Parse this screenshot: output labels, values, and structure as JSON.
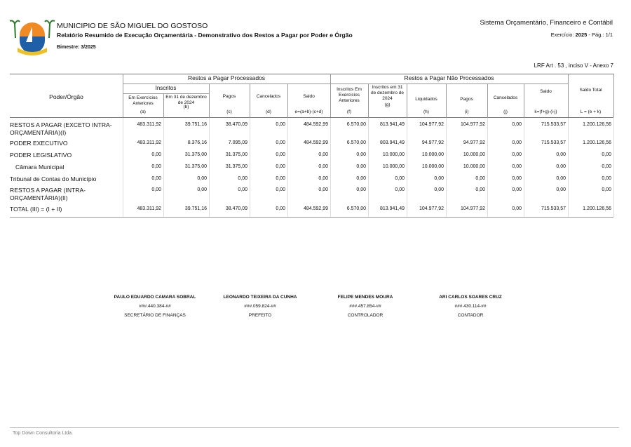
{
  "header": {
    "municipality": "MUNICIPIO DE SÃO MIGUEL DO GOSTOSO",
    "report_title": "Relatório Resumido de Execução Orçamentária - Demonstrativo dos Restos a Pagar por Poder e Órgão",
    "period": "Bimestre: 3/2025",
    "system": "Sistema Orçamentário, Financeiro e Contábil",
    "exercise_label": "Exercício:",
    "exercise_year": "2025",
    "page": "-  Pág.: 1/1",
    "legal": "LRF Art . 53 , inciso V - Anexo 7"
  },
  "table": {
    "groups": [
      "Restos a Pagar Processados",
      "Restos a Pagar Não Processados"
    ],
    "first_column": "Poder/Órgão",
    "inscritos": "Inscritos",
    "columns": [
      {
        "label": "Em Exercícios Anteriores",
        "code": "(a)"
      },
      {
        "label": "Em 31 de dezembro de 2024",
        "code": "(b)"
      },
      {
        "label": "Pagos",
        "code": "(c)"
      },
      {
        "label": "Cancelados",
        "code": "(d)"
      },
      {
        "label": "Saldo",
        "code": "e=(a+b)-(c+d)"
      },
      {
        "label": "Inscritos Em Exercícios Anteriores",
        "code": "(f)"
      },
      {
        "label": "Inscritos em 31 de dezembro de 2024",
        "code": "(g)"
      },
      {
        "label": "Liquidados",
        "code": "(h)"
      },
      {
        "label": "Pagos",
        "code": "(i)"
      },
      {
        "label": "Cancelados",
        "code": "(j)"
      },
      {
        "label": "Saldo",
        "code": "k=(f+g)-(i-j)"
      },
      {
        "label": "Saldo Total",
        "code": "L = (e + k)"
      }
    ],
    "rows": [
      {
        "label": "RESTOS A PAGAR (EXCETO INTRA-ORÇAMENTÁRIA)(I)",
        "values": [
          "483.311,92",
          "39.751,16",
          "38.470,09",
          "0,00",
          "484.592,99",
          "6.570,00",
          "813.941,49",
          "104.977,92",
          "104.977,92",
          "0,00",
          "715.533,57",
          "1.200.126,56"
        ]
      },
      {
        "label": "PODER EXECUTIVO",
        "values": [
          "483.311,92",
          "8.376,16",
          "7.095,09",
          "0,00",
          "484.592,99",
          "6.570,00",
          "803.941,49",
          "94.977,92",
          "94.977,92",
          "0,00",
          "715.533,57",
          "1.200.126,56"
        ]
      },
      {
        "label": "PODER LEGISLATIVO",
        "values": [
          "0,00",
          "31.375,00",
          "31.375,00",
          "0,00",
          "0,00",
          "0,00",
          "10.000,00",
          "10.000,00",
          "10.000,00",
          "0,00",
          "0,00",
          "0,00"
        ]
      },
      {
        "label": "Câmara Municipal",
        "values": [
          "0,00",
          "31.375,00",
          "31.375,00",
          "0,00",
          "0,00",
          "0,00",
          "10.000,00",
          "10.000,00",
          "10.000,00",
          "0,00",
          "0,00",
          "0,00"
        ]
      },
      {
        "label": "Tribunal de Contas do Município",
        "values": [
          "0,00",
          "0,00",
          "0,00",
          "0,00",
          "0,00",
          "0,00",
          "0,00",
          "0,00",
          "0,00",
          "0,00",
          "0,00",
          "0,00"
        ]
      },
      {
        "label": "RESTOS A PAGAR (INTRA-ORÇAMENTÁRIA)(II)",
        "values": [
          "0,00",
          "0,00",
          "0,00",
          "0,00",
          "0,00",
          "0,00",
          "0,00",
          "0,00",
          "0,00",
          "0,00",
          "0,00",
          "0,00"
        ]
      },
      {
        "label": "TOTAL (III) = (I + II)",
        "values": [
          "483.311,92",
          "39.751,16",
          "38.470,09",
          "0,00",
          "484.592,99",
          "6.570,00",
          "813.941,49",
          "104.977,92",
          "104.977,92",
          "0,00",
          "715.533,57",
          "1.200.126,56"
        ]
      }
    ]
  },
  "signatures": [
    {
      "name": "PAULO EDUARDO CAMARA SOBRAL",
      "id": "###.440.384-##",
      "role": "SECRETÁRIO DE FINANÇAS"
    },
    {
      "name": "LEONARDO TEIXEIRA DA CUNHA",
      "id": "###.059.824-##",
      "role": "PREFEITO"
    },
    {
      "name": "FELIPE MENDES MOURA",
      "id": "###.457.854-##",
      "role": "CONTROLADOR"
    },
    {
      "name": "ARI CARLOS SOARES CRUZ",
      "id": "###.430.114-##",
      "role": "CONTADOR"
    }
  ],
  "footer": "Top Down Consultoria Ltda."
}
